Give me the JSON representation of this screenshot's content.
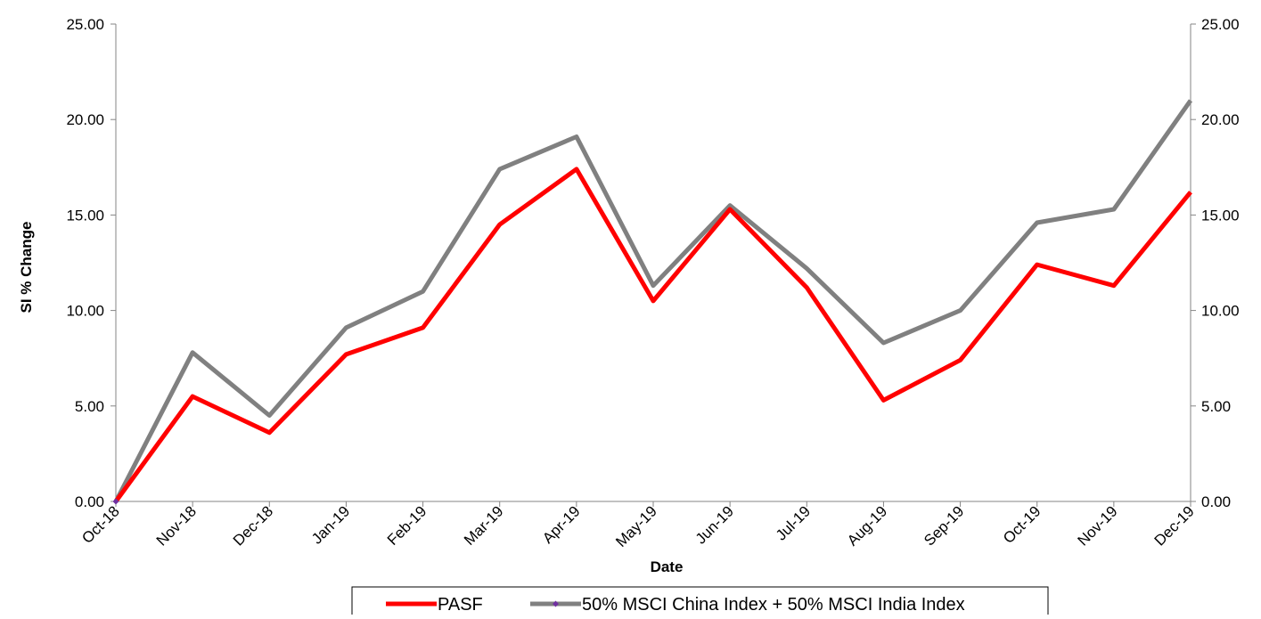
{
  "chart_data": {
    "type": "line",
    "title": "",
    "xlabel": "Date",
    "ylabel": "SI % Change",
    "ylim": [
      0,
      25
    ],
    "y_ticks": [
      "0.00",
      "5.00",
      "10.00",
      "15.00",
      "20.00",
      "25.00"
    ],
    "y2_ticks": [
      "0.00",
      "5.00",
      "10.00",
      "15.00",
      "20.00",
      "25.00"
    ],
    "categories": [
      "Oct-18",
      "Nov-18",
      "Dec-18",
      "Jan-19",
      "Feb-19",
      "Mar-19",
      "Apr-19",
      "May-19",
      "Jun-19",
      "Jul-19",
      "Aug-19",
      "Sep-19",
      "Oct-19",
      "Nov-19",
      "Dec-19"
    ],
    "series": [
      {
        "name": "PASF",
        "color": "#ff0000",
        "values": [
          0.0,
          5.5,
          3.6,
          7.7,
          9.1,
          14.5,
          17.4,
          10.5,
          15.3,
          11.2,
          5.3,
          7.4,
          12.4,
          11.3,
          16.2
        ]
      },
      {
        "name": "50% MSCI China Index + 50% MSCI India Index",
        "color": "#808080",
        "marker_color": "#7030a0",
        "values": [
          0.0,
          7.8,
          4.5,
          9.1,
          11.0,
          17.4,
          19.1,
          11.3,
          15.5,
          12.2,
          8.3,
          10.0,
          14.6,
          15.3,
          21.0
        ]
      }
    ],
    "grid": false,
    "legend_position": "bottom"
  }
}
